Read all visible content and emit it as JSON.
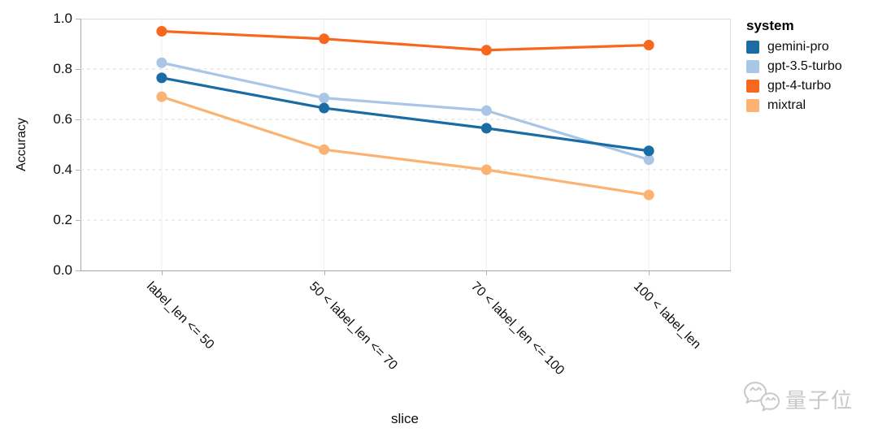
{
  "chart_data": {
    "type": "line",
    "xlabel": "slice",
    "ylabel": "Accuracy",
    "ylim": [
      0.0,
      1.0
    ],
    "yticks": [
      0.0,
      0.2,
      0.4,
      0.6,
      0.8,
      1.0
    ],
    "grid": true,
    "legend_position": "right",
    "categories": [
      "label_len <= 50",
      "50 < label_len <= 70",
      "70 < label_len <= 100",
      "100 < label_len"
    ],
    "series": [
      {
        "name": "gemini-pro",
        "color": "#1b6ba5",
        "values": [
          0.765,
          0.645,
          0.565,
          0.475
        ]
      },
      {
        "name": "gpt-3.5-turbo",
        "color": "#a9c6e6",
        "values": [
          0.825,
          0.685,
          0.635,
          0.44
        ]
      },
      {
        "name": "gpt-4-turbo",
        "color": "#f8671e",
        "values": [
          0.95,
          0.92,
          0.875,
          0.895
        ]
      },
      {
        "name": "mixtral",
        "color": "#fcb272",
        "values": [
          0.69,
          0.48,
          0.4,
          0.3
        ]
      }
    ]
  },
  "legend": {
    "title": "system"
  },
  "watermark": {
    "text": "量子位",
    "icon": "wechat-icon"
  },
  "style_colors": {
    "gridline": "#dedede",
    "category_gridline": "#efefef",
    "axis_domain": "#a8a8a8",
    "plot_border": "#dcdcdc"
  }
}
